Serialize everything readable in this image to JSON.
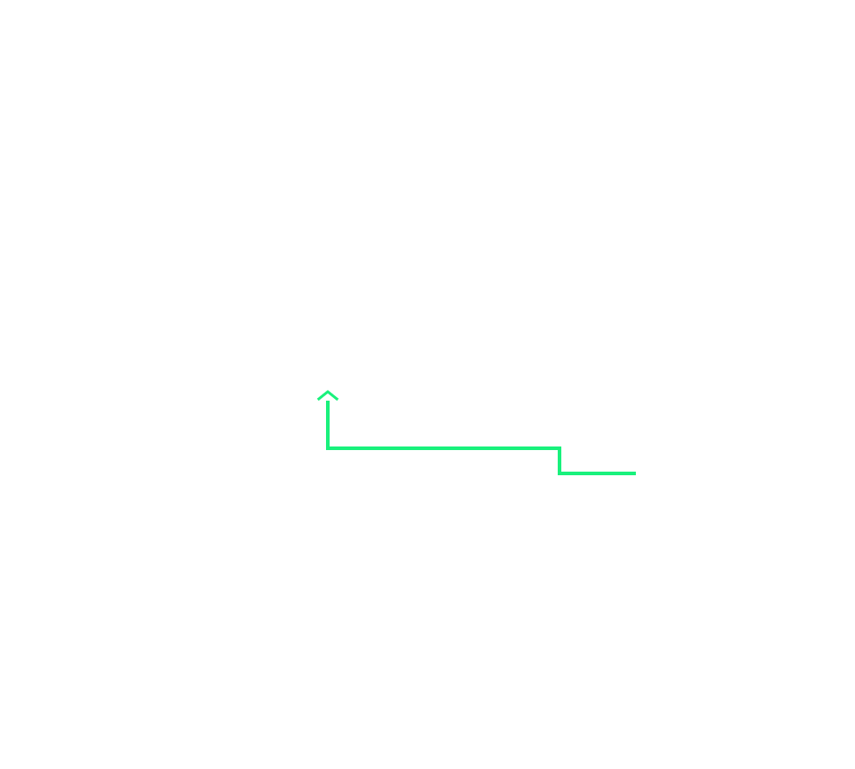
{
  "connector": {
    "color": "#19f17c",
    "head": "up-arrow"
  }
}
